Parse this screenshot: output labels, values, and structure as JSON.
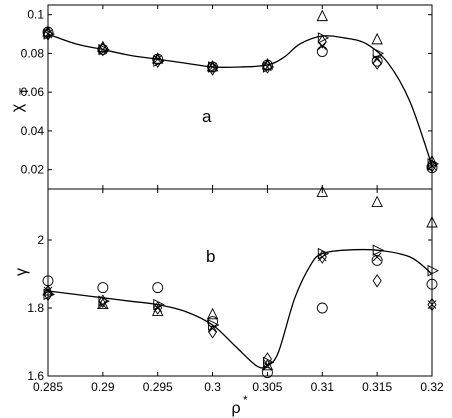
{
  "chart_data": [
    {
      "type": "scatter",
      "panel_label": "a",
      "ylabel": "χ",
      "ylabel_subscript": "T",
      "xlim": [
        0.285,
        0.32
      ],
      "ylim": [
        0.01,
        0.105
      ],
      "yticks": [
        0.02,
        0.04,
        0.06,
        0.08,
        0.1
      ],
      "ytick_labels": [
        "0.02",
        "0.04",
        "0.06",
        "0.08",
        "0.1"
      ],
      "series": [
        {
          "marker": "circle",
          "x": [
            0.285,
            0.29,
            0.295,
            0.3,
            0.305,
            0.31,
            0.315,
            0.32
          ],
          "values": [
            0.091,
            0.082,
            0.077,
            0.073,
            0.074,
            0.081,
            0.076,
            0.021
          ]
        },
        {
          "marker": "triangle-up",
          "x": [
            0.285,
            0.29,
            0.295,
            0.3,
            0.305,
            0.31,
            0.315,
            0.32
          ],
          "values": [
            0.091,
            0.083,
            0.077,
            0.073,
            0.074,
            0.099,
            0.087,
            0.024
          ]
        },
        {
          "marker": "triangle-right",
          "x": [
            0.285,
            0.29,
            0.295,
            0.3,
            0.305,
            0.31,
            0.315,
            0.32
          ],
          "values": [
            0.09,
            0.082,
            0.076,
            0.073,
            0.073,
            0.088,
            0.08,
            0.023
          ]
        },
        {
          "marker": "diamond",
          "x": [
            0.285,
            0.29,
            0.295,
            0.3,
            0.305,
            0.31,
            0.315,
            0.32
          ],
          "values": [
            0.09,
            0.082,
            0.076,
            0.072,
            0.073,
            0.086,
            0.075,
            0.022
          ]
        },
        {
          "marker": "x",
          "x": [
            0.285,
            0.29,
            0.295,
            0.3,
            0.305,
            0.31,
            0.315,
            0.32
          ],
          "values": [
            0.09,
            0.082,
            0.077,
            0.073,
            0.073,
            0.084,
            0.077,
            0.022
          ]
        }
      ],
      "fit_curve": {
        "x": [
          0.285,
          0.2875,
          0.29,
          0.2925,
          0.295,
          0.2975,
          0.3,
          0.3025,
          0.305,
          0.3065,
          0.308,
          0.31,
          0.312,
          0.314,
          0.316,
          0.318,
          0.32
        ],
        "values": [
          0.09,
          0.085,
          0.082,
          0.079,
          0.077,
          0.075,
          0.073,
          0.073,
          0.074,
          0.078,
          0.085,
          0.089,
          0.088,
          0.085,
          0.075,
          0.055,
          0.022
        ]
      }
    },
    {
      "type": "scatter",
      "panel_label": "b",
      "ylabel": "γ",
      "xlabel": "ρ",
      "xlabel_superscript": "*",
      "xlim": [
        0.285,
        0.32
      ],
      "ylim": [
        1.6,
        2.15
      ],
      "xticks": [
        0.285,
        0.29,
        0.295,
        0.3,
        0.305,
        0.31,
        0.315,
        0.32
      ],
      "xtick_labels": [
        "0.285",
        "0.29",
        "0.295",
        "0.3",
        "0.305",
        "0.31",
        "0.315",
        "0.32"
      ],
      "yticks": [
        1.6,
        1.8,
        2.0
      ],
      "ytick_labels": [
        "1.6",
        "1.8",
        "2"
      ],
      "series": [
        {
          "marker": "circle",
          "x": [
            0.285,
            0.29,
            0.295,
            0.3,
            0.305,
            0.31,
            0.315,
            0.32
          ],
          "values": [
            1.88,
            1.86,
            1.86,
            1.76,
            1.61,
            1.8,
            1.94,
            1.87
          ]
        },
        {
          "marker": "triangle-up",
          "x": [
            0.285,
            0.29,
            0.295,
            0.3,
            0.305,
            0.31,
            0.315,
            0.32
          ],
          "values": [
            1.85,
            1.81,
            1.79,
            1.78,
            1.63,
            2.14,
            2.11,
            2.05
          ]
        },
        {
          "marker": "triangle-right",
          "x": [
            0.285,
            0.29,
            0.295,
            0.3,
            0.305,
            0.31,
            0.315,
            0.32
          ],
          "values": [
            1.84,
            1.82,
            1.81,
            1.75,
            1.64,
            1.96,
            1.97,
            1.91
          ]
        },
        {
          "marker": "diamond",
          "x": [
            0.285,
            0.29,
            0.295,
            0.3,
            0.305,
            0.31,
            0.315,
            0.32
          ],
          "values": [
            1.84,
            1.82,
            1.8,
            1.73,
            1.65,
            1.95,
            1.88,
            1.81
          ]
        },
        {
          "marker": "x",
          "x": [
            0.285,
            0.29,
            0.295,
            0.3,
            0.305,
            0.31,
            0.315,
            0.32
          ],
          "values": [
            1.85,
            1.81,
            1.8,
            1.74,
            1.63,
            1.95,
            1.95,
            1.81
          ]
        }
      ],
      "fit_curve": {
        "x": [
          0.285,
          0.2875,
          0.29,
          0.2925,
          0.295,
          0.2975,
          0.3,
          0.302,
          0.304,
          0.305,
          0.306,
          0.3075,
          0.309,
          0.31,
          0.312,
          0.315,
          0.318,
          0.32
        ],
        "values": [
          1.85,
          1.84,
          1.83,
          1.82,
          1.81,
          1.79,
          1.75,
          1.69,
          1.63,
          1.63,
          1.67,
          1.83,
          1.93,
          1.96,
          1.97,
          1.97,
          1.95,
          1.9
        ]
      }
    }
  ]
}
